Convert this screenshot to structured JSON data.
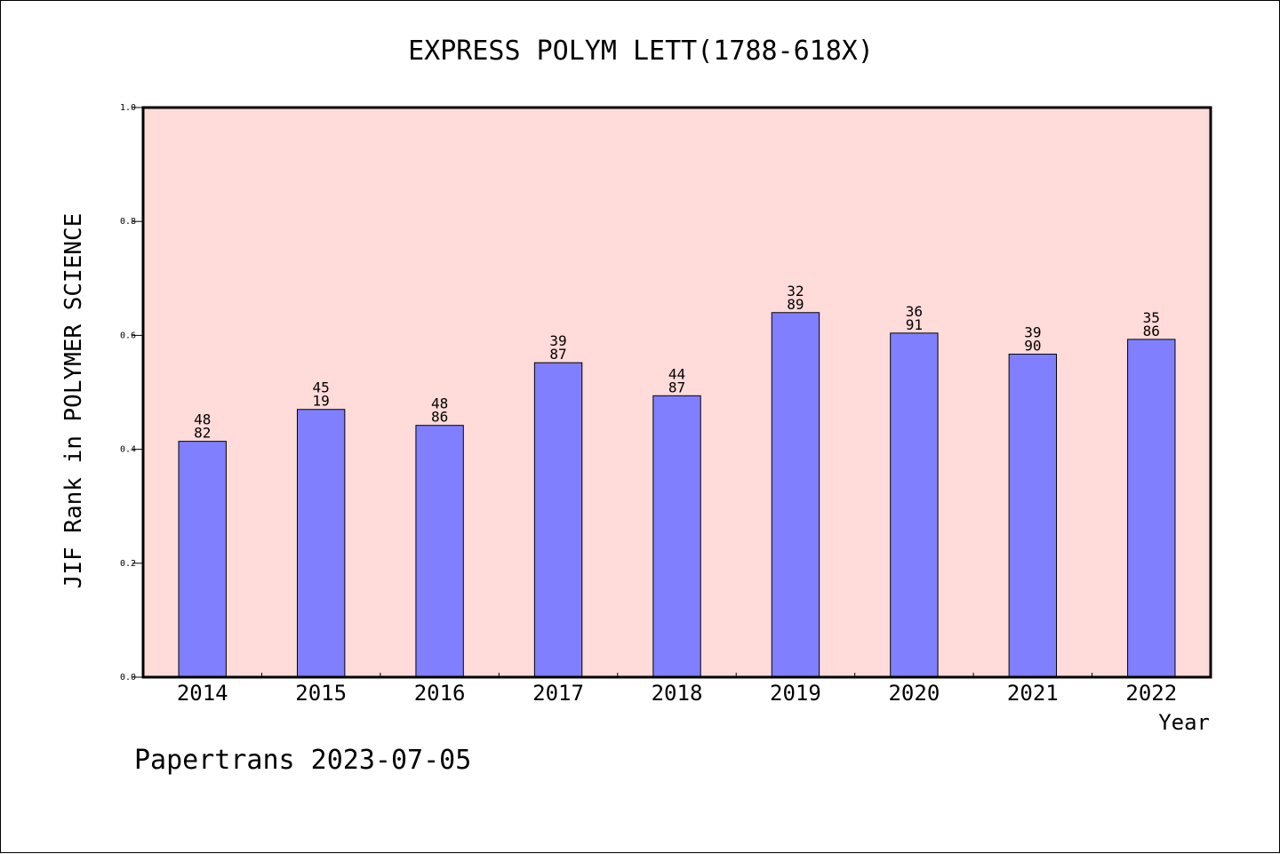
{
  "chart_data": {
    "type": "bar",
    "title": "EXPRESS POLYM LETT(1788-618X)",
    "xlabel": "Year",
    "ylabel": "JIF Rank in POLYMER SCIENCE",
    "categories": [
      "2014",
      "2015",
      "2016",
      "2017",
      "2018",
      "2019",
      "2020",
      "2021",
      "2022"
    ],
    "values": [
      0.414,
      0.47,
      0.442,
      0.552,
      0.494,
      0.64,
      0.604,
      0.567,
      0.593
    ],
    "labels": [
      [
        "48",
        "82"
      ],
      [
        "45",
        "19"
      ],
      [
        "48",
        "86"
      ],
      [
        "39",
        "87"
      ],
      [
        "44",
        "87"
      ],
      [
        "32",
        "89"
      ],
      [
        "36",
        "91"
      ],
      [
        "39",
        "90"
      ],
      [
        "35",
        "86"
      ]
    ],
    "ylim": [
      0,
      1
    ],
    "yticks": [
      "0.0",
      "0.2",
      "0.4",
      "0.6",
      "0.8",
      "1.0"
    ],
    "grid": false,
    "legend": "none",
    "colors": {
      "plot_background": "#ffdbd9",
      "bar_fill": "#8080ff",
      "bar_stroke": "#000000"
    }
  },
  "footer": {
    "text": "Papertrans 2023-07-05"
  }
}
